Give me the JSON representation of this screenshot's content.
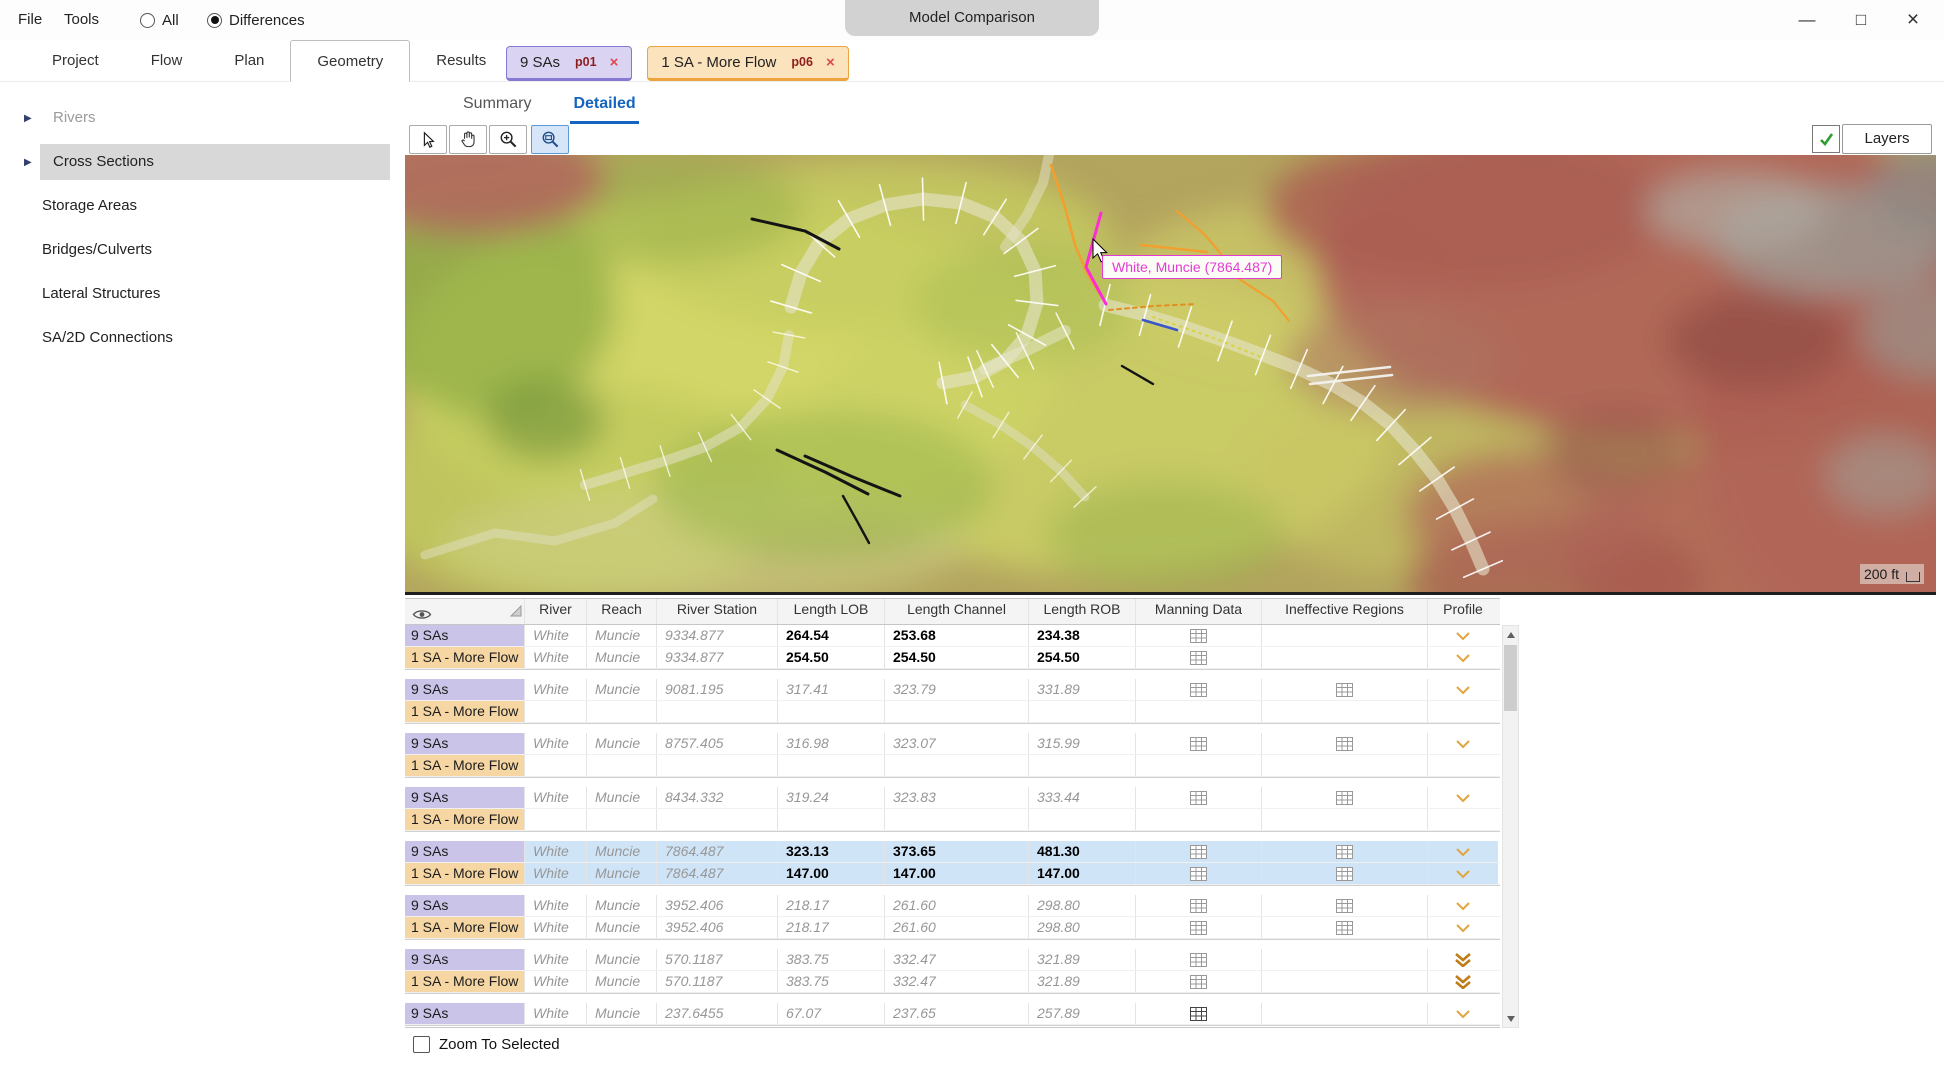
{
  "window": {
    "title": "Model Comparison",
    "menu": {
      "file": "File",
      "tools": "Tools"
    },
    "filter": {
      "all_label": "All",
      "differences_label": "Differences",
      "selected": "Differences"
    },
    "controls": {
      "minimize": "—",
      "maximize": "□",
      "close": "×"
    }
  },
  "nav_tabs": {
    "items": [
      "Project",
      "Flow",
      "Plan",
      "Geometry",
      "Results"
    ],
    "active": "Geometry"
  },
  "plan_tabs": [
    {
      "label": "9 SAs",
      "badge": "p01",
      "close": "×",
      "fill": "#dad4f2",
      "border": "#8579d2",
      "row_fill": "#cbc4e9"
    },
    {
      "label": "1 SA - More Flow",
      "badge": "p06",
      "close": "×",
      "fill": "#fbe3bd",
      "border": "#eda43e",
      "row_fill": "#f6d6a3"
    }
  ],
  "sidebar": {
    "items": [
      {
        "label": "Rivers"
      },
      {
        "label": "Cross Sections"
      },
      {
        "label": "Storage Areas"
      },
      {
        "label": "Bridges/Culverts"
      },
      {
        "label": "Lateral Structures"
      },
      {
        "label": "SA/2D Connections"
      }
    ],
    "selected": "Cross Sections"
  },
  "view_tabs": {
    "summary": "Summary",
    "detailed": "Detailed",
    "active": "Detailed"
  },
  "map": {
    "toolbar": {
      "tools": [
        "select-cursor",
        "pan-hand",
        "zoom-in",
        "zoom-window"
      ],
      "active_tool": "zoom-window",
      "layers_label": "Layers",
      "layers_checked": true
    },
    "tooltip": {
      "text": "White, Muncie (7864.487)",
      "color": "#e53bd4"
    },
    "scale_label": "200 ft"
  },
  "table": {
    "columns": [
      "River",
      "Reach",
      "River Station",
      "Length LOB",
      "Length Channel",
      "Length ROB",
      "Manning Data",
      "Ineffective Regions",
      "Profile"
    ],
    "groups": [
      {
        "selected": false,
        "rows": [
          {
            "plan": 0,
            "river": "White",
            "reach": "Muncie",
            "station": "9334.877",
            "lob": "264.54",
            "channel": "253.68",
            "rob": "234.38",
            "num_style": "bold",
            "manning": true,
            "ineffective": false,
            "profile": "normal"
          },
          {
            "plan": 1,
            "river": "White",
            "reach": "Muncie",
            "station": "9334.877",
            "lob": "254.50",
            "channel": "254.50",
            "rob": "254.50",
            "num_style": "bold",
            "manning": true,
            "ineffective": false,
            "profile": "normal"
          }
        ]
      },
      {
        "selected": false,
        "rows": [
          {
            "plan": 0,
            "river": "White",
            "reach": "Muncie",
            "station": "9081.195",
            "lob": "317.41",
            "channel": "323.79",
            "rob": "331.89",
            "num_style": "muted",
            "manning": true,
            "ineffective": true,
            "profile": "normal"
          },
          {
            "plan": 1
          }
        ]
      },
      {
        "selected": false,
        "rows": [
          {
            "plan": 0,
            "river": "White",
            "reach": "Muncie",
            "station": "8757.405",
            "lob": "316.98",
            "channel": "323.07",
            "rob": "315.99",
            "num_style": "muted",
            "manning": true,
            "ineffective": true,
            "profile": "normal"
          },
          {
            "plan": 1
          }
        ]
      },
      {
        "selected": false,
        "rows": [
          {
            "plan": 0,
            "river": "White",
            "reach": "Muncie",
            "station": "8434.332",
            "lob": "319.24",
            "channel": "323.83",
            "rob": "333.44",
            "num_style": "muted",
            "manning": true,
            "ineffective": true,
            "profile": "normal"
          },
          {
            "plan": 1
          }
        ]
      },
      {
        "selected": true,
        "rows": [
          {
            "plan": 0,
            "river": "White",
            "reach": "Muncie",
            "station": "7864.487",
            "lob": "323.13",
            "channel": "373.65",
            "rob": "481.30",
            "num_style": "bold",
            "manning": true,
            "ineffective": true,
            "profile": "normal"
          },
          {
            "plan": 1,
            "river": "White",
            "reach": "Muncie",
            "station": "7864.487",
            "lob": "147.00",
            "channel": "147.00",
            "rob": "147.00",
            "num_style": "bold",
            "manning": true,
            "ineffective": true,
            "profile": "normal"
          }
        ]
      },
      {
        "selected": false,
        "rows": [
          {
            "plan": 0,
            "river": "White",
            "reach": "Muncie",
            "station": "3952.406",
            "lob": "218.17",
            "channel": "261.60",
            "rob": "298.80",
            "num_style": "muted",
            "manning": true,
            "ineffective": true,
            "profile": "normal"
          },
          {
            "plan": 1,
            "river": "White",
            "reach": "Muncie",
            "station": "3952.406",
            "lob": "218.17",
            "channel": "261.60",
            "rob": "298.80",
            "num_style": "muted",
            "manning": true,
            "ineffective": true,
            "profile": "normal"
          }
        ]
      },
      {
        "selected": false,
        "rows": [
          {
            "plan": 0,
            "river": "White",
            "reach": "Muncie",
            "station": "570.1187",
            "lob": "383.75",
            "channel": "332.47",
            "rob": "321.89",
            "num_style": "muted",
            "manning": true,
            "ineffective": false,
            "profile": "bold"
          },
          {
            "plan": 1,
            "river": "White",
            "reach": "Muncie",
            "station": "570.1187",
            "lob": "383.75",
            "channel": "332.47",
            "rob": "321.89",
            "num_style": "muted",
            "manning": true,
            "ineffective": false,
            "profile": "bold"
          }
        ]
      },
      {
        "selected": false,
        "rows": [
          {
            "plan": 0,
            "river": "White",
            "reach": "Muncie",
            "station": "237.6455",
            "lob": "67.07",
            "channel": "237.65",
            "rob": "257.89",
            "num_style": "muted",
            "manning": true,
            "manning_bold": true,
            "ineffective": false,
            "profile": "normal"
          }
        ]
      }
    ]
  },
  "footer": {
    "zoom_to_selected": "Zoom To Selected",
    "checked": false
  }
}
